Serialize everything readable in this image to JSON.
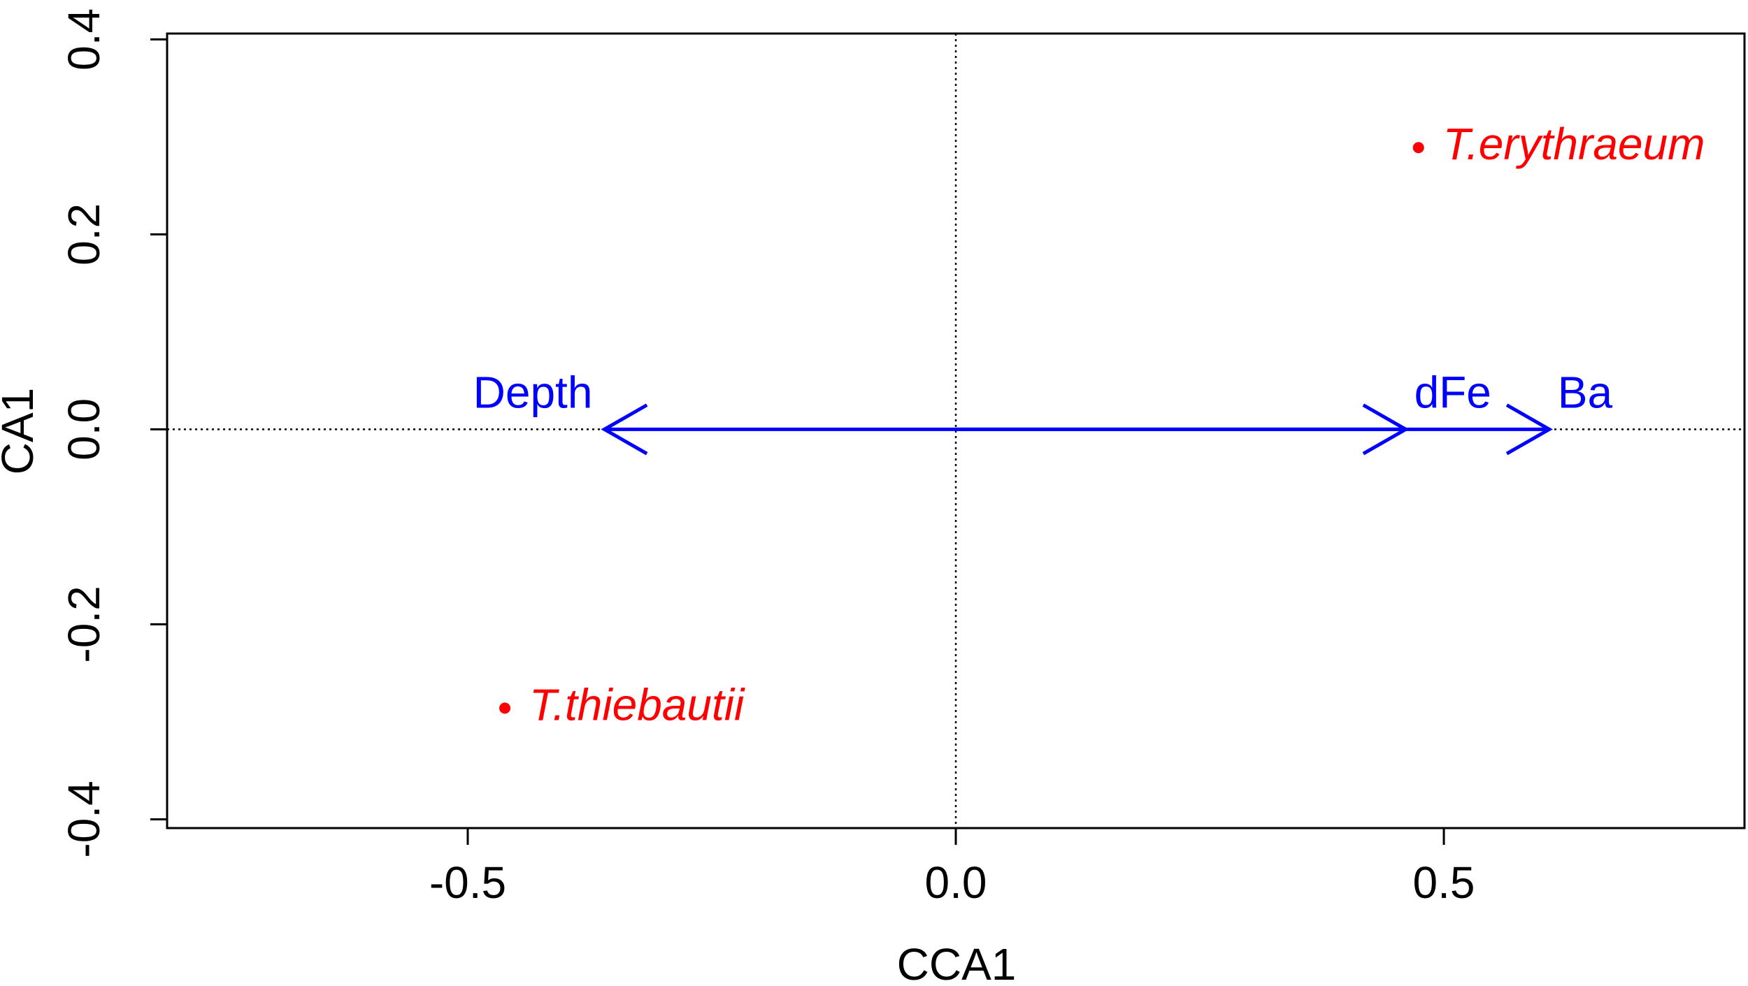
{
  "chart_data": {
    "type": "biplot",
    "xlabel": "CCA1",
    "ylabel": "CA1",
    "xlim": [
      -0.808,
      0.808
    ],
    "ylim": [
      -0.409,
      0.406
    ],
    "xticks": [
      -0.5,
      {
        "value": 0,
        "label": "0.0"
      },
      0.5
    ],
    "yticks": [
      -0.4,
      -0.2,
      {
        "value": 0,
        "label": "0.0"
      },
      0.2,
      0.4
    ],
    "zero_lines": true,
    "points": [
      {
        "label": "T.erythraeum",
        "x": 0.474,
        "y": 0.289
      },
      {
        "label": "T.thiebautii",
        "x": -0.462,
        "y": -0.286
      }
    ],
    "points_color": "#ff0000",
    "arrows": [
      {
        "label": "Depth",
        "x": -0.36,
        "y": 0
      },
      {
        "label": "dFe",
        "x": 0.461,
        "y": 0
      },
      {
        "label": "Ba",
        "x": 0.608,
        "y": 0
      }
    ],
    "arrows_color": "#0000ff"
  }
}
